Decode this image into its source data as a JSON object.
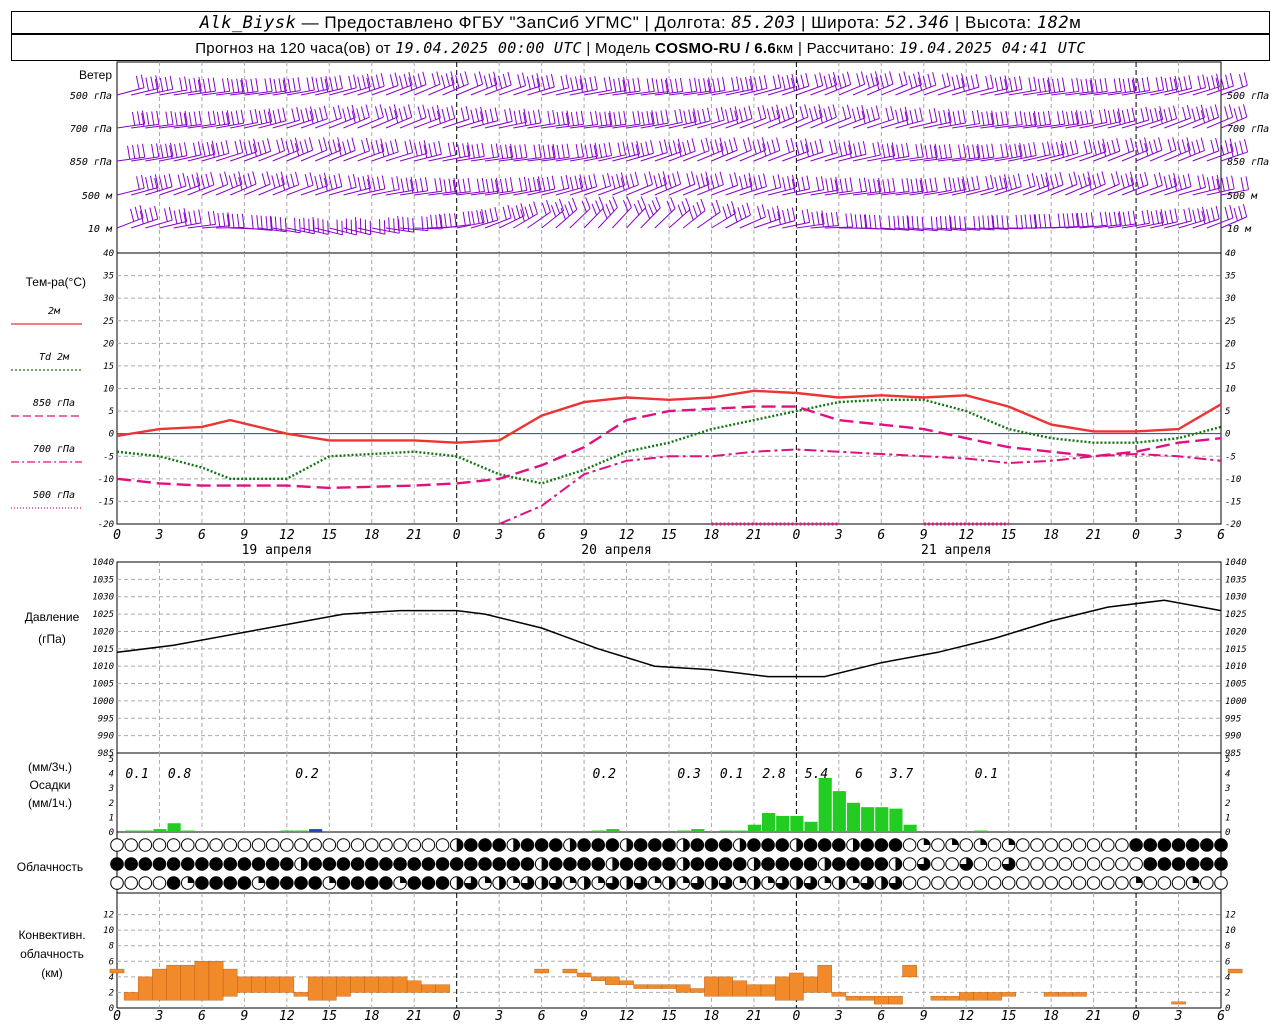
{
  "header": {
    "station": "Alk_Biysk",
    "dash": "—",
    "provider": "Предоставлено ФГБУ \"ЗапСиб УГМС\"",
    "lon_label": "Долгота:",
    "lon": "85.203",
    "lat_label": "Широта:",
    "lat": "52.346",
    "alt_label": "Высота:",
    "alt": "182",
    "alt_unit": "м",
    "forecast_label": "Прогноз на 120 часа(ов) от",
    "forecast_start": "19.04.2025 00:00 UTC",
    "model_label": "Модель",
    "model": "COSMO-RU / 6.6",
    "model_unit": "км",
    "computed_label": "Рассчитано:",
    "computed": "19.04.2025 04:41 UTC"
  },
  "colors": {
    "wind": "#8800cc",
    "t2m": "#ee3333",
    "td2m": "#117711",
    "t850": "#e01080",
    "t700": "#e01080",
    "t500": "#e01080",
    "zero": "#3333cc",
    "pressure": "#000000",
    "precip3h": "#22cc22",
    "precip1h": "#2244cc",
    "convective": "#f08a2a",
    "grid": "#aaaaaa"
  },
  "time_axis": {
    "hours": [
      "0",
      "3",
      "6",
      "9",
      "12",
      "15",
      "18",
      "21",
      "0",
      "3",
      "6",
      "9",
      "12",
      "15",
      "18",
      "21",
      "0",
      "3",
      "6",
      "9",
      "12",
      "15",
      "18",
      "21",
      "0",
      "3",
      "6"
    ],
    "days": [
      "19 апреля",
      "20 апреля",
      "21 апреля"
    ]
  },
  "wind_panel": {
    "title": "Ветер",
    "levels": [
      "500 гПа",
      "700 гПа",
      "850 гПа",
      "500 м",
      "10 м"
    ]
  },
  "temp_panel": {
    "title": "Тем-ра(°C)",
    "legend": [
      {
        "label": "2м",
        "style": "solid"
      },
      {
        "label": "Td 2м",
        "style": "dot"
      },
      {
        "label": "850 гПа",
        "style": "dash"
      },
      {
        "label": "700 гПа",
        "style": "dashdot"
      },
      {
        "label": "500 гПа",
        "style": "dotfine"
      }
    ],
    "ticks": [
      "40",
      "35",
      "30",
      "25",
      "20",
      "15",
      "10",
      "5",
      "0",
      "-5",
      "-10",
      "-15",
      "-20"
    ]
  },
  "pressure_panel": {
    "title": "Давление",
    "unit": "(гПа)",
    "ticks": [
      "1040",
      "1035",
      "1030",
      "1025",
      "1020",
      "1015",
      "1010",
      "1005",
      "1000",
      "995",
      "990",
      "985"
    ]
  },
  "precip_panel": {
    "unit3": "(мм/3ч.)",
    "title": "Осадки",
    "unit1": "(мм/1ч.)",
    "ticks": [
      "5",
      "4",
      "3",
      "2",
      "1",
      "0"
    ],
    "totals": [
      {
        "h": 1,
        "v": "0.1"
      },
      {
        "h": 4,
        "v": "0.8"
      },
      {
        "h": 13,
        "v": "0.2"
      },
      {
        "h": 34,
        "v": "0.2"
      },
      {
        "h": 40,
        "v": "0.3"
      },
      {
        "h": 43,
        "v": "0.1"
      },
      {
        "h": 46,
        "v": "2.8"
      },
      {
        "h": 49,
        "v": "5.4"
      },
      {
        "h": 52,
        "v": "6"
      },
      {
        "h": 55,
        "v": "3.7"
      },
      {
        "h": 61,
        "v": "0.1"
      }
    ]
  },
  "cloud_panel": {
    "title": "Облачность"
  },
  "conv_panel": {
    "title1": "Конвективн.",
    "title2": "облачность",
    "unit": "(км)",
    "ticks": [
      "12",
      "10",
      "8",
      "6",
      "4",
      "2",
      "0"
    ]
  },
  "chart_data": [
    {
      "type": "line",
      "title": "Тем-ра(°C)",
      "x_unit": "hours from 19.04.2025 00:00 UTC",
      "ylim": [
        -20,
        40
      ],
      "x": [
        0,
        3,
        6,
        8,
        12,
        15,
        21,
        24,
        27,
        30,
        33,
        36,
        39,
        42,
        45,
        48,
        51,
        54,
        57,
        60,
        63,
        66,
        69,
        72,
        75,
        78
      ],
      "series": [
        {
          "name": "2м",
          "values": [
            -0.5,
            1,
            1.5,
            3,
            0,
            -1.5,
            -1.5,
            -2,
            -1.5,
            4,
            7,
            8,
            7.5,
            8,
            9.5,
            9,
            8,
            8.5,
            8,
            8.5,
            6,
            2,
            0.5,
            0.5,
            1,
            6.5
          ]
        },
        {
          "name": "Td 2м",
          "values": [
            -4,
            -5,
            -7.5,
            -10,
            -10,
            -5,
            -4,
            -5,
            -9,
            -11,
            -8,
            -4,
            -2,
            1,
            3,
            5,
            7,
            7.5,
            7.5,
            5,
            1,
            -1,
            -2,
            -2,
            -1,
            1.5
          ]
        },
        {
          "name": "850 гПа",
          "values": [
            -10,
            -11,
            -11.5,
            -11.5,
            -11.5,
            -12,
            -11.5,
            -11,
            -10,
            -7,
            -3,
            3,
            5,
            5.5,
            6,
            6,
            3,
            2,
            1,
            -1,
            -3,
            -4,
            -5,
            -4,
            -2,
            -1
          ]
        },
        {
          "name": "700 гПа",
          "values": [
            null,
            null,
            null,
            null,
            null,
            null,
            null,
            null,
            -20,
            -16,
            -9,
            -6,
            -5,
            -5,
            -4,
            -3.5,
            -4,
            -4.5,
            -5,
            -5.5,
            -6.5,
            -6,
            -5,
            -4.5,
            -5,
            -6
          ]
        },
        {
          "name": "500 гПа",
          "values": [
            null,
            null,
            null,
            null,
            null,
            null,
            null,
            null,
            null,
            null,
            null,
            null,
            null,
            -20,
            -20,
            -20,
            -20,
            null,
            -20,
            -20,
            -20,
            null,
            null,
            null,
            null,
            null
          ]
        }
      ]
    },
    {
      "type": "line",
      "title": "Давление",
      "ylabel": "(гПа)",
      "ylim": [
        985,
        1040
      ],
      "x": [
        0,
        4,
        8,
        12,
        16,
        20,
        24,
        26,
        30,
        34,
        38,
        42,
        46,
        50,
        54,
        58,
        62,
        66,
        70,
        74,
        78
      ],
      "series": [
        {
          "name": "Давление",
          "values": [
            1014,
            1016,
            1019,
            1022,
            1025,
            1026,
            1026,
            1025,
            1021,
            1015,
            1010,
            1009,
            1007,
            1007,
            1011,
            1014,
            1018,
            1023,
            1027,
            1029,
            1026
          ]
        }
      ]
    },
    {
      "type": "bar",
      "title": "Осадки",
      "ylabel": "(мм/1ч.)",
      "ylim": [
        0,
        5
      ],
      "x": [
        1,
        2,
        3,
        4,
        5,
        12,
        13,
        14,
        34,
        35,
        40,
        41,
        43,
        44,
        45,
        46,
        47,
        48,
        49,
        50,
        51,
        52,
        53,
        54,
        55,
        56,
        61
      ],
      "values": [
        0.1,
        0.1,
        0.2,
        0.6,
        0.1,
        0.1,
        0.1,
        0.2,
        0.1,
        0.2,
        0.1,
        0.2,
        0.1,
        0.1,
        0.5,
        1.3,
        1.1,
        1.1,
        0.7,
        3.7,
        2.8,
        2.0,
        1.7,
        1.7,
        1.6,
        0.5,
        0.1
      ]
    },
    {
      "type": "bar",
      "title": "Конвективн. облачность",
      "ylabel": "(км)",
      "ylim": [
        0,
        14
      ],
      "bars": [
        {
          "x": 0,
          "bot": 4.5,
          "top": 5
        },
        {
          "x": 1,
          "bot": 1,
          "top": 2
        },
        {
          "x": 2,
          "bot": 1,
          "top": 4
        },
        {
          "x": 3,
          "bot": 1,
          "top": 5
        },
        {
          "x": 4,
          "bot": 1,
          "top": 5.5
        },
        {
          "x": 5,
          "bot": 1,
          "top": 5.5
        },
        {
          "x": 6,
          "bot": 1,
          "top": 6
        },
        {
          "x": 7,
          "bot": 1,
          "top": 6
        },
        {
          "x": 8,
          "bot": 1.5,
          "top": 5
        },
        {
          "x": 9,
          "bot": 2,
          "top": 4
        },
        {
          "x": 10,
          "bot": 2,
          "top": 4
        },
        {
          "x": 11,
          "bot": 2,
          "top": 4
        },
        {
          "x": 12,
          "bot": 2,
          "top": 4
        },
        {
          "x": 13,
          "bot": 1.5,
          "top": 2
        },
        {
          "x": 14,
          "bot": 1,
          "top": 4
        },
        {
          "x": 15,
          "bot": 1,
          "top": 4
        },
        {
          "x": 16,
          "bot": 1.5,
          "top": 4
        },
        {
          "x": 17,
          "bot": 2,
          "top": 4
        },
        {
          "x": 18,
          "bot": 2,
          "top": 4
        },
        {
          "x": 19,
          "bot": 2,
          "top": 4
        },
        {
          "x": 20,
          "bot": 2,
          "top": 4
        },
        {
          "x": 21,
          "bot": 2,
          "top": 3.5
        },
        {
          "x": 22,
          "bot": 2,
          "top": 3
        },
        {
          "x": 23,
          "bot": 2,
          "top": 3
        },
        {
          "x": 30,
          "bot": 4.5,
          "top": 5
        },
        {
          "x": 32,
          "bot": 4.5,
          "top": 5
        },
        {
          "x": 33,
          "bot": 4,
          "top": 4.5
        },
        {
          "x": 34,
          "bot": 3.5,
          "top": 4
        },
        {
          "x": 35,
          "bot": 3,
          "top": 4
        },
        {
          "x": 36,
          "bot": 3,
          "top": 3.5
        },
        {
          "x": 37,
          "bot": 2.5,
          "top": 3
        },
        {
          "x": 38,
          "bot": 2.5,
          "top": 3
        },
        {
          "x": 39,
          "bot": 2.5,
          "top": 3
        },
        {
          "x": 40,
          "bot": 2,
          "top": 3
        },
        {
          "x": 41,
          "bot": 2,
          "top": 2.5
        },
        {
          "x": 42,
          "bot": 1.5,
          "top": 4
        },
        {
          "x": 43,
          "bot": 1.5,
          "top": 4
        },
        {
          "x": 44,
          "bot": 1.5,
          "top": 3.5
        },
        {
          "x": 45,
          "bot": 1.5,
          "top": 3
        },
        {
          "x": 46,
          "bot": 1.5,
          "top": 3
        },
        {
          "x": 47,
          "bot": 1,
          "top": 4
        },
        {
          "x": 48,
          "bot": 1,
          "top": 4.5
        },
        {
          "x": 49,
          "bot": 2,
          "top": 4
        },
        {
          "x": 50,
          "bot": 2,
          "top": 5.5
        },
        {
          "x": 51,
          "bot": 1.5,
          "top": 2
        },
        {
          "x": 52,
          "bot": 1,
          "top": 1.5
        },
        {
          "x": 53,
          "bot": 1,
          "top": 1.5
        },
        {
          "x": 54,
          "bot": 0.5,
          "top": 1.5
        },
        {
          "x": 55,
          "bot": 0.5,
          "top": 1.5
        },
        {
          "x": 56,
          "bot": 4,
          "top": 5.5
        },
        {
          "x": 58,
          "bot": 1,
          "top": 1.5
        },
        {
          "x": 59,
          "bot": 1,
          "top": 1.5
        },
        {
          "x": 60,
          "bot": 1,
          "top": 2
        },
        {
          "x": 61,
          "bot": 1,
          "top": 2
        },
        {
          "x": 62,
          "bot": 1,
          "top": 2
        },
        {
          "x": 63,
          "bot": 1.5,
          "top": 2
        },
        {
          "x": 66,
          "bot": 1.5,
          "top": 2
        },
        {
          "x": 67,
          "bot": 1.5,
          "top": 2
        },
        {
          "x": 68,
          "bot": 1.5,
          "top": 2
        },
        {
          "x": 75,
          "bot": 0.5,
          "top": 0.8
        },
        {
          "x": 79,
          "bot": 4.5,
          "top": 5
        }
      ]
    }
  ]
}
